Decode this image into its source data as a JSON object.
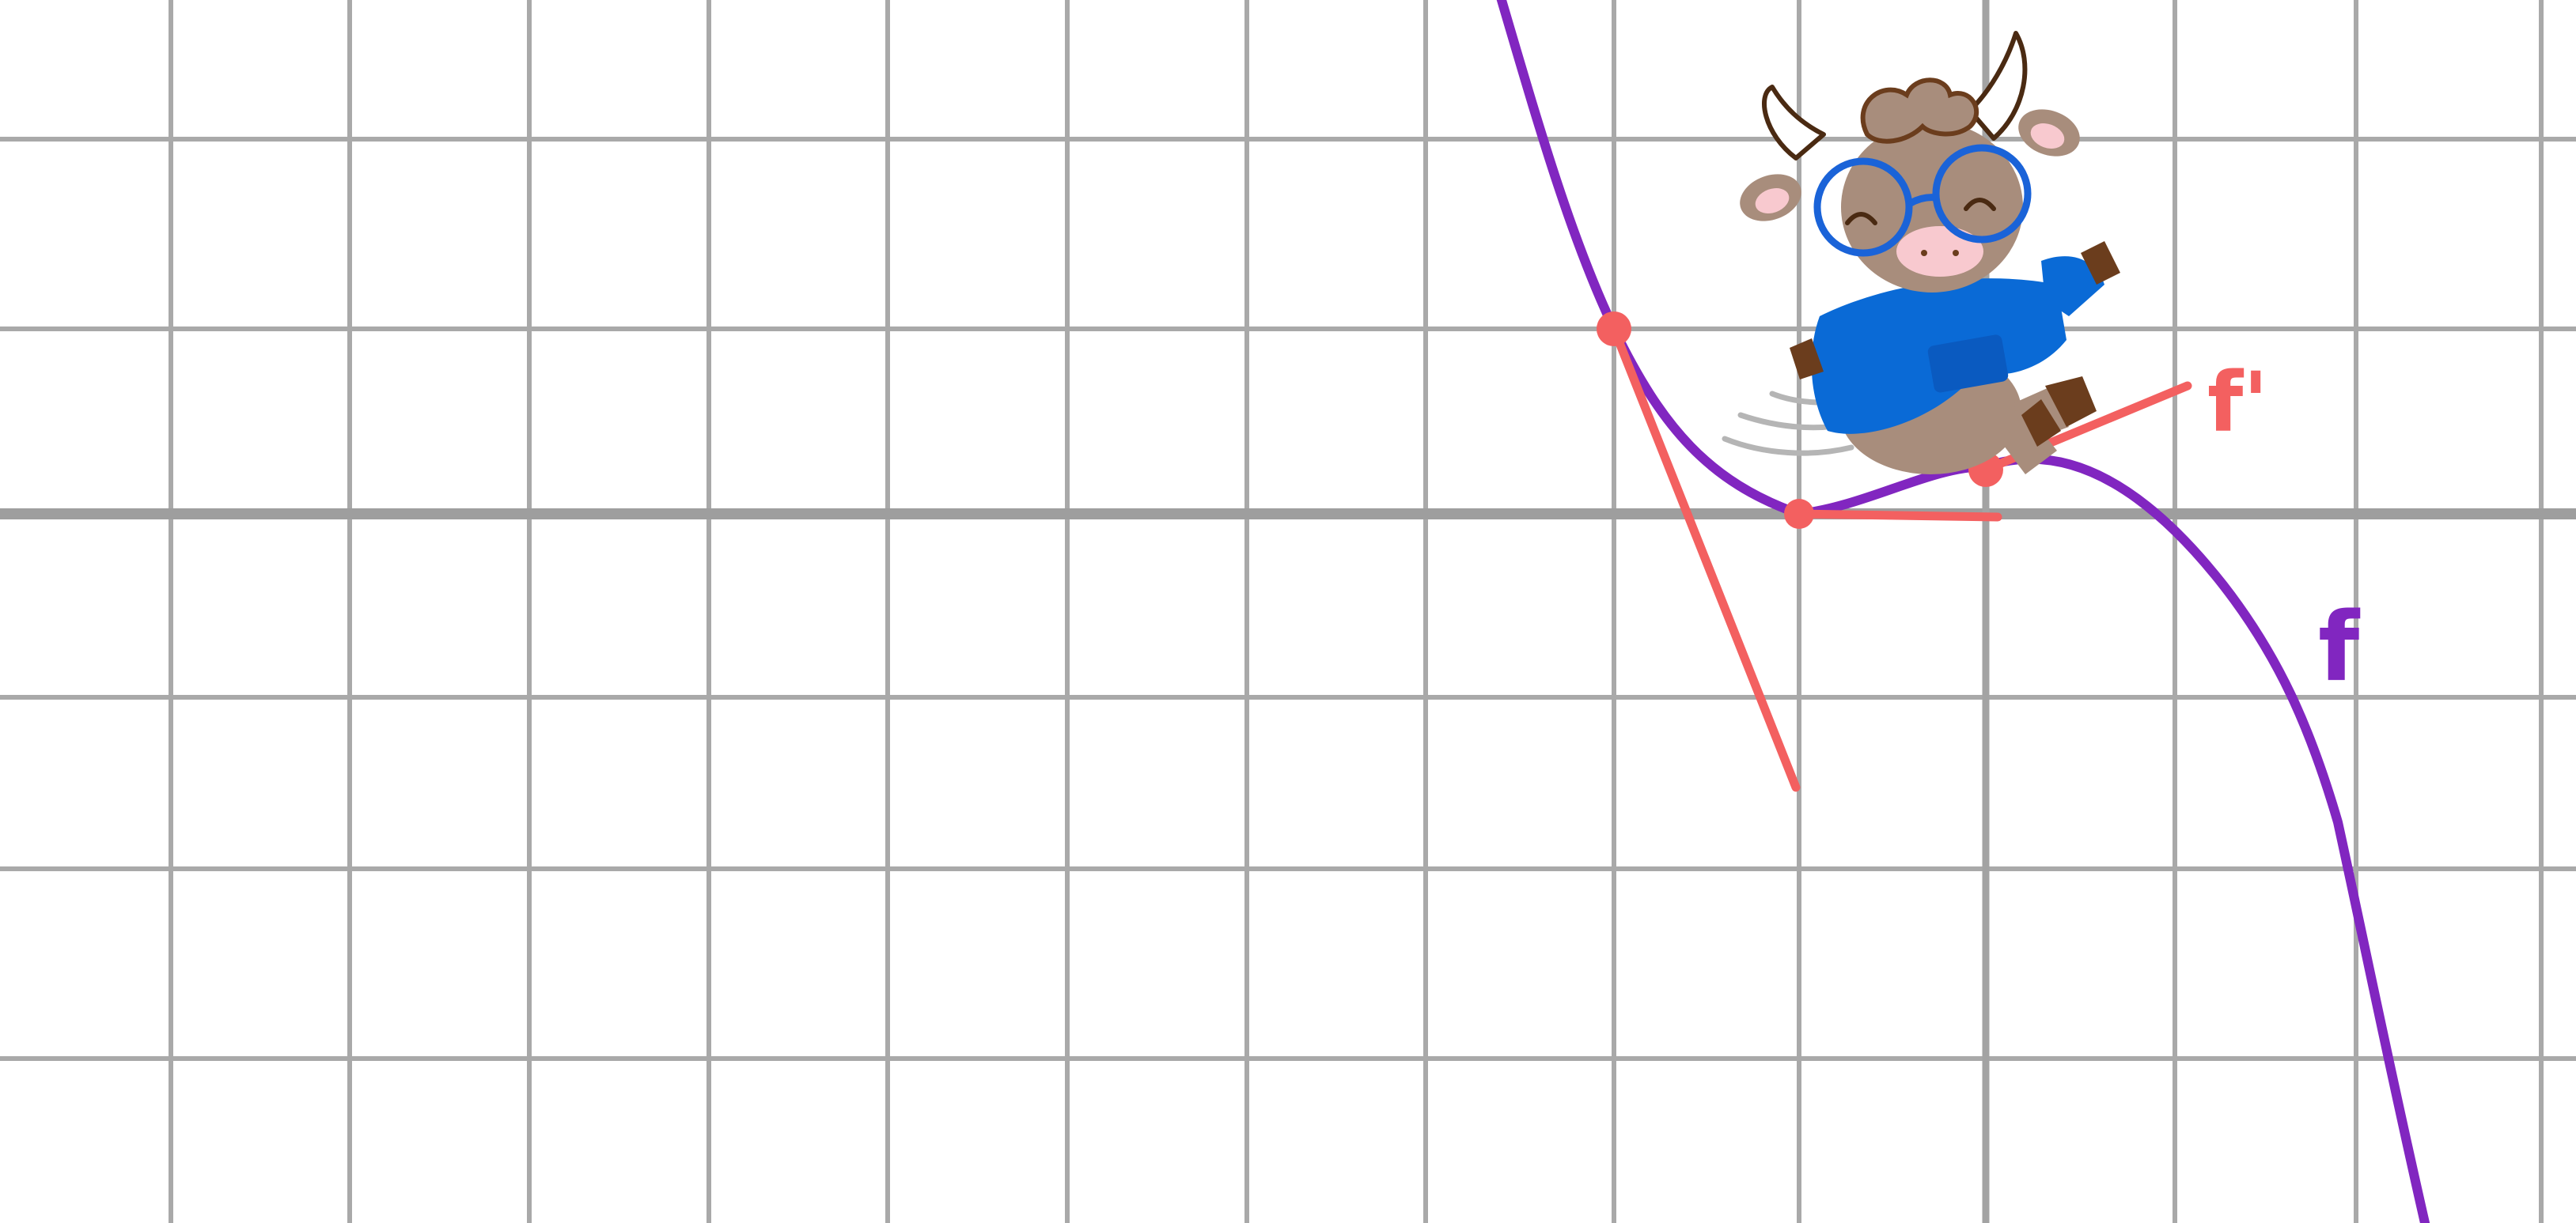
{
  "diagram": {
    "curve_label": "f",
    "derivative_label": "f'",
    "colors": {
      "background": "#ffffff",
      "grid": "#a9a9a9",
      "x_axis": "#9e9e9e",
      "curve": "#8126c0",
      "derivative": "#f36060",
      "character_fur": "#a88d7c",
      "character_shirt": "#0a6ad6",
      "character_glasses": "#1a63d8",
      "character_spots": "#6b3d1d",
      "character_nose": "#f8c9cf"
    },
    "icons": [
      "cow-character-icon",
      "glasses-icon",
      "horn-icon",
      "motion-lines-icon"
    ]
  }
}
